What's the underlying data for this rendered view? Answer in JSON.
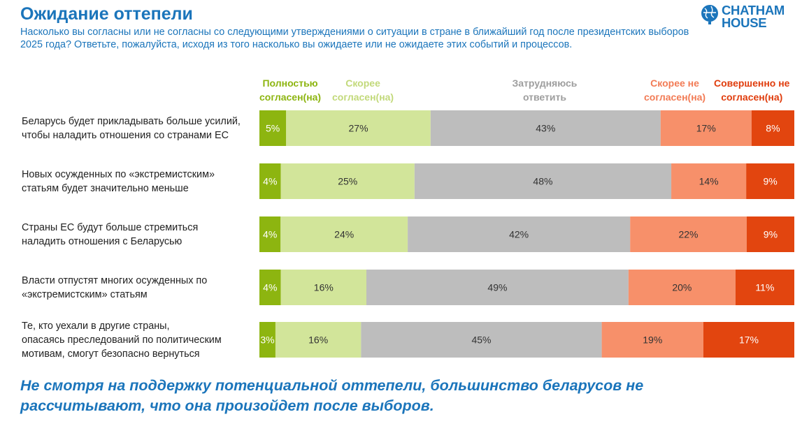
{
  "title": "Ожидание оттепели",
  "subtitle": "Насколько вы согласны или не согласны со следующими утверждениями о ситуации в стране в ближайший год после президентских выборов 2025 года? Ответьте, пожалуйста, исходя из того насколько вы ожидаете или не ожидаете этих событий и процессов.",
  "logo": {
    "line1": "CHATHAM",
    "line2": "HOUSE",
    "icon": "globe-icon"
  },
  "conclusion": "Не смотря на поддержку потенциальной оттепели, большинство беларусов не рассчитывают, что она произойдет после выборов.",
  "chart_data": {
    "type": "bar",
    "orientation": "horizontal",
    "stacked": true,
    "unit": "%",
    "categories": [
      "Беларусь будет прикладывать больше усилий, чтобы наладить отношения со странами ЕС",
      "Новых осужденных по «экстремистским» статьям будет значительно меньше",
      "Страны ЕС будут больше стремиться наладить отношения с Беларусью",
      "Власти отпустят многих осужденных по «экстремистским» статьям",
      "Те, кто уехали в другие страны, опасаясь преследований по политическим мотивам, смогут безопасно вернуться"
    ],
    "category_lines": [
      [
        "Беларусь будет прикладывать больше усилий,",
        "чтобы наладить отношения со странами ЕС"
      ],
      [
        "Новых осужденных по «экстремистским»",
        "статьям будет значительно меньше"
      ],
      [
        "Страны ЕС будут больше стремиться",
        "наладить отношения с Беларусью"
      ],
      [
        "Власти отпустят многих осужденных по",
        "«экстремистским» статьям"
      ],
      [
        "Те, кто уехали в другие страны,",
        "опасаясь преследований по политическим",
        "мотивам, смогут безопасно вернуться"
      ]
    ],
    "series": [
      {
        "name_lines": [
          "Полностью",
          "согласен(на)"
        ],
        "color": "#8db510",
        "text_color": "#ffffff",
        "legend_color": "#8db510",
        "values": [
          5,
          4,
          4,
          4,
          3
        ]
      },
      {
        "name_lines": [
          "Скорее",
          "согласен(на)"
        ],
        "color": "#d2e59a",
        "text_color": "#333333",
        "legend_color": "#c2d97a",
        "values": [
          27,
          25,
          24,
          16,
          16
        ]
      },
      {
        "name_lines": [
          "Затрудняюсь",
          "ответить"
        ],
        "color": "#bdbdbd",
        "text_color": "#333333",
        "legend_color": "#9e9e9e",
        "values": [
          43,
          48,
          42,
          49,
          45
        ]
      },
      {
        "name_lines": [
          "Скорее не",
          "согласен(на)"
        ],
        "color": "#f7906a",
        "text_color": "#333333",
        "legend_color": "#f27b55",
        "values": [
          17,
          14,
          22,
          20,
          19
        ]
      },
      {
        "name_lines": [
          "Совершенно не",
          "согласен(на)"
        ],
        "color": "#e2450f",
        "text_color": "#ffffff",
        "legend_color": "#e03c0c",
        "values": [
          8,
          9,
          9,
          11,
          17
        ]
      }
    ],
    "legend_position": "top",
    "grid": false
  }
}
